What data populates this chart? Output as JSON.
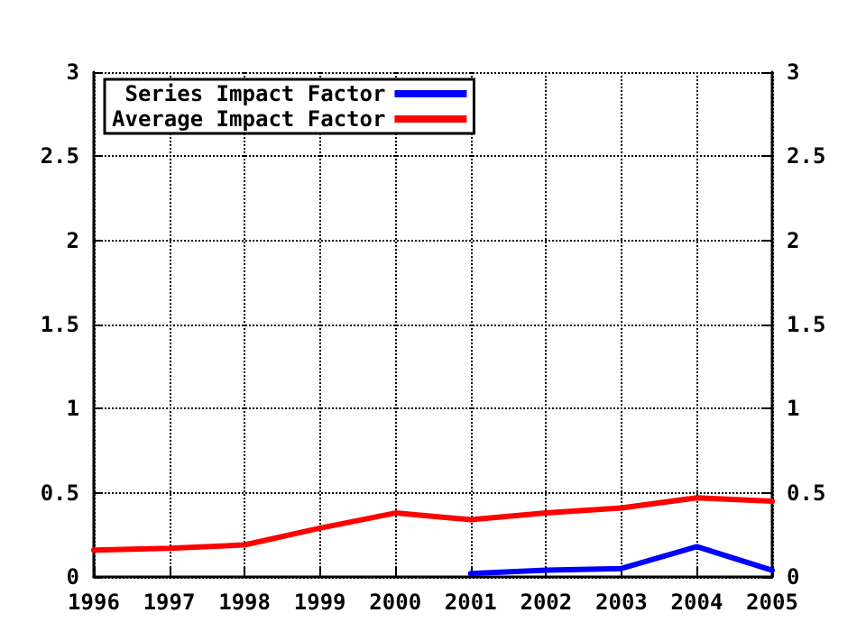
{
  "chart_data": {
    "type": "line",
    "x": [
      1996,
      1997,
      1998,
      1999,
      2000,
      2001,
      2002,
      2003,
      2004,
      2005
    ],
    "series": [
      {
        "name": "Series Impact Factor",
        "color": "#0000ff",
        "x": [
          2001,
          2002,
          2003,
          2004,
          2005
        ],
        "values": [
          0.02,
          0.04,
          0.05,
          0.18,
          0.04
        ]
      },
      {
        "name": "Average Impact Factor",
        "color": "#ff0000",
        "values": [
          0.16,
          0.17,
          0.19,
          0.29,
          0.38,
          0.34,
          0.38,
          0.41,
          0.47,
          0.45
        ]
      }
    ],
    "xlim": [
      1996,
      2005
    ],
    "xticks": [
      1996,
      1997,
      1998,
      1999,
      2000,
      2001,
      2002,
      2003,
      2004,
      2005
    ],
    "ylim": [
      0,
      3
    ],
    "yticks": [
      0,
      0.5,
      1,
      1.5,
      2,
      2.5,
      3
    ],
    "y2lim": [
      0,
      3
    ],
    "y2ticks": [
      0,
      0.5,
      1,
      1.5,
      2,
      2.5,
      3
    ],
    "grid": true,
    "legend": "top left",
    "marker": "none",
    "line_style": "solid"
  }
}
